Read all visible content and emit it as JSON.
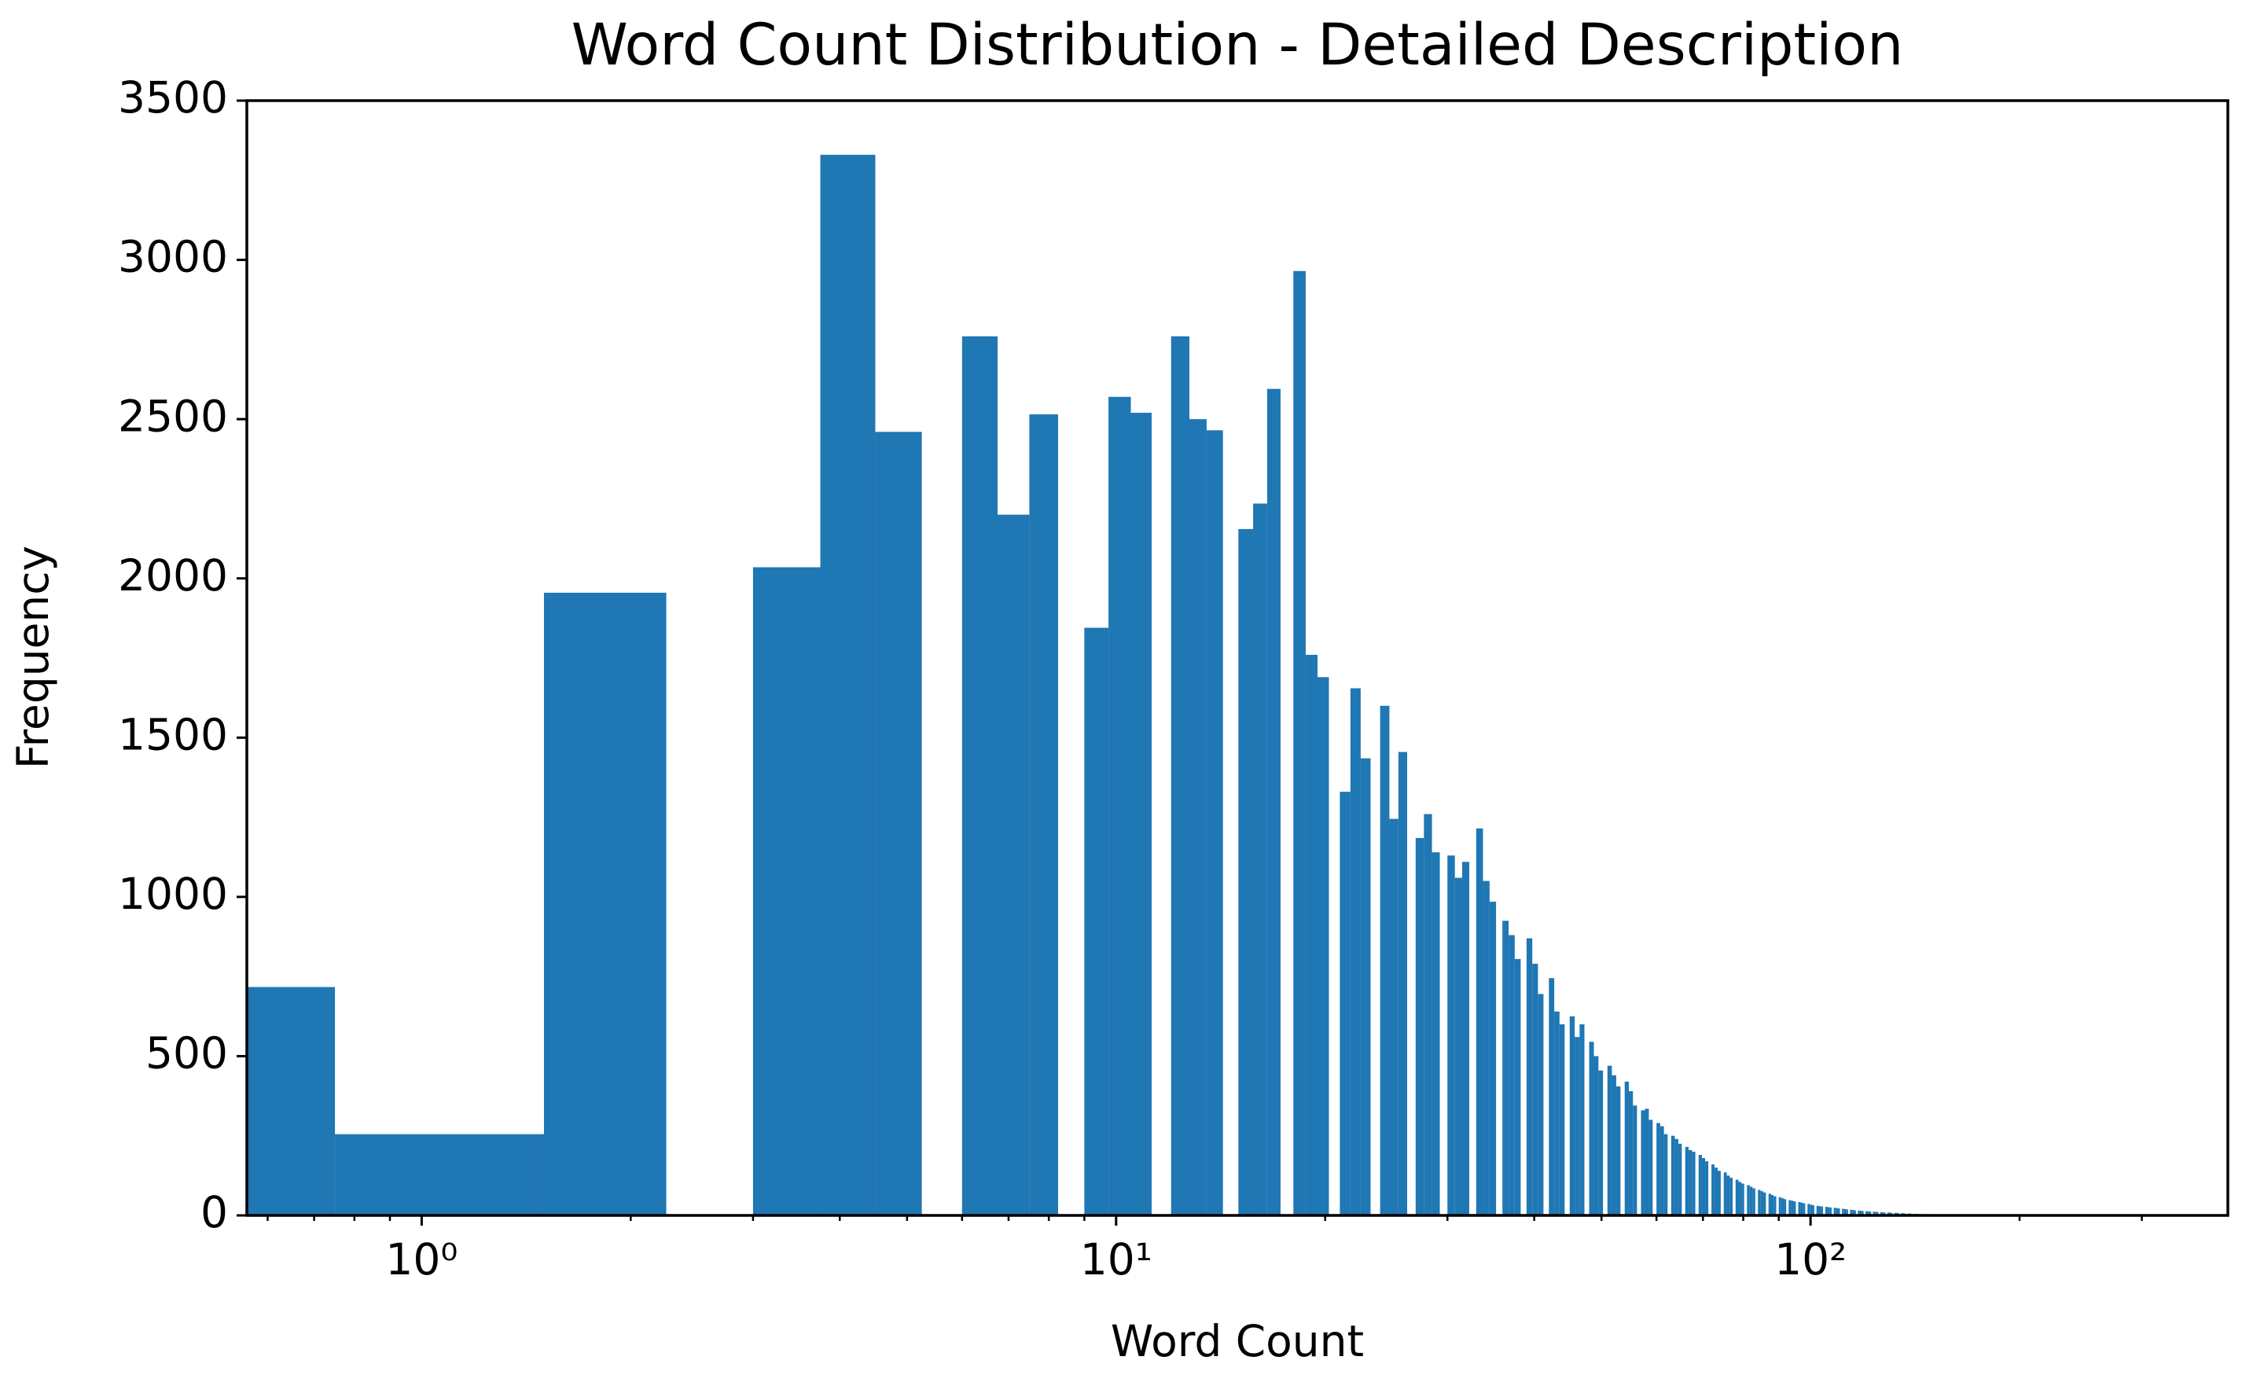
{
  "chart_data": {
    "type": "histogram",
    "title": "Word Count Distribution - Detailed Description",
    "x_label": "Word Count",
    "y_label": "Frequency",
    "color": "#1f77b4",
    "xscale": "log",
    "xlim": [
      0.56,
      399
    ],
    "ylim": [
      0,
      3500
    ],
    "xticks": [
      {
        "value": 1,
        "label": "10⁰"
      },
      {
        "value": 10,
        "label": "10¹"
      },
      {
        "value": 100,
        "label": "10²"
      }
    ],
    "xminorticks": [
      0.6,
      0.7,
      0.8,
      0.9,
      2,
      3,
      4,
      5,
      6,
      7,
      8,
      9,
      20,
      30,
      40,
      50,
      60,
      70,
      80,
      90,
      200,
      300
    ],
    "yticks": [
      0,
      500,
      1000,
      1500,
      2000,
      2500,
      3000,
      3500
    ],
    "bins": [
      0,
      0.75,
      1.5,
      2.25,
      3,
      3.75,
      4.5,
      5.25,
      6,
      6.75,
      7.5,
      8.25,
      9,
      9.75,
      10.5,
      11.25,
      12,
      12.75,
      13.5,
      14.25,
      15,
      15.75,
      16.5,
      17.25,
      18,
      18.75,
      19.5,
      20.25,
      21,
      21.75,
      22.5,
      23.25,
      24,
      24.75,
      25.5,
      26.25,
      27,
      27.75,
      28.5,
      29.25,
      30,
      30.75,
      31.5,
      32.25,
      33,
      33.75,
      34.5,
      35.25,
      36,
      36.75,
      37.5,
      38.25,
      39,
      39.75,
      40.5,
      41.25,
      42,
      42.75,
      43.5,
      44.25,
      45,
      45.75,
      46.5,
      47.25,
      48,
      48.75,
      49.5,
      50.25,
      51,
      51.75,
      52.5,
      53.25,
      54,
      54.75,
      55.5,
      56.25,
      57,
      57.75,
      58.5,
      59.25,
      60,
      60.75,
      61.5,
      62.25,
      63,
      63.75,
      64.5,
      65.25,
      66,
      66.75,
      67.5,
      68.25,
      69,
      69.75,
      70.5,
      71.25,
      72,
      72.75,
      73.5,
      74.25,
      75,
      75.75,
      76.5,
      77.25,
      78,
      78.75,
      79.5,
      80.25,
      81,
      81.75,
      82.5,
      83.25,
      84,
      84.75,
      85.5,
      86.25,
      87,
      87.75,
      88.5,
      89.25,
      90,
      90.75,
      91.5,
      92.25,
      93,
      93.75,
      94.5,
      95.25,
      96,
      96.75,
      97.5,
      98.25,
      99,
      99.75,
      100.5,
      101.25,
      102,
      102.75,
      103.5,
      104.25,
      105,
      105.75,
      106.5,
      107.25,
      108,
      108.75,
      109.5,
      110.25,
      111,
      111.75,
      112.5,
      113.25,
      114,
      114.75,
      115.5,
      116.25,
      117,
      117.75,
      118.5,
      119.25,
      120,
      120.75,
      121.5,
      122.25,
      123,
      123.75,
      124.5,
      125.25,
      126,
      126.75,
      127.5,
      128.25,
      129,
      129.75,
      130.5,
      131.25,
      132,
      132.75,
      133.5,
      134.25,
      135,
      135.75,
      136.5,
      137.25,
      138,
      138.75,
      139.5,
      140.25,
      141,
      141.75,
      142.5,
      143.25,
      144,
      144.75,
      145.5,
      146.25,
      147,
      147.75,
      148.5,
      149.25,
      150
    ],
    "values": [
      717,
      255,
      1955,
      0,
      2035,
      3330,
      2460,
      0,
      2760,
      2200,
      2515,
      0,
      1845,
      2570,
      2520,
      0,
      2760,
      2500,
      2465,
      0,
      2155,
      2235,
      2595,
      0,
      2965,
      1760,
      1690,
      0,
      1330,
      1655,
      1435,
      0,
      1600,
      1245,
      1455,
      0,
      1185,
      1260,
      1140,
      0,
      1130,
      1060,
      1110,
      0,
      1215,
      1050,
      985,
      0,
      925,
      880,
      805,
      0,
      870,
      790,
      695,
      0,
      745,
      640,
      600,
      0,
      625,
      560,
      600,
      0,
      545,
      500,
      455,
      0,
      470,
      440,
      405,
      0,
      420,
      390,
      345,
      0,
      330,
      335,
      300,
      0,
      290,
      280,
      255,
      0,
      250,
      240,
      225,
      0,
      215,
      205,
      200,
      0,
      190,
      180,
      170,
      0,
      160,
      150,
      140,
      0,
      135,
      125,
      118,
      0,
      112,
      105,
      100,
      0,
      95,
      90,
      85,
      0,
      80,
      76,
      72,
      0,
      68,
      64,
      60,
      0,
      57,
      54,
      51,
      0,
      48,
      46,
      44,
      0,
      42,
      40,
      38,
      0,
      36,
      34,
      32,
      0,
      30,
      29,
      28,
      0,
      27,
      26,
      25,
      0,
      24,
      23,
      22,
      0,
      21,
      20,
      19,
      0,
      18,
      17,
      16,
      0,
      15,
      15,
      14,
      0,
      13,
      13,
      12,
      0,
      12,
      11,
      11,
      0,
      10,
      10,
      9,
      0,
      9,
      9,
      8,
      0,
      8,
      8,
      7,
      0,
      7,
      7,
      6,
      0,
      6,
      6,
      5,
      0,
      5,
      5,
      5,
      0,
      4,
      4,
      4,
      0,
      4,
      3,
      3,
      0
    ]
  }
}
